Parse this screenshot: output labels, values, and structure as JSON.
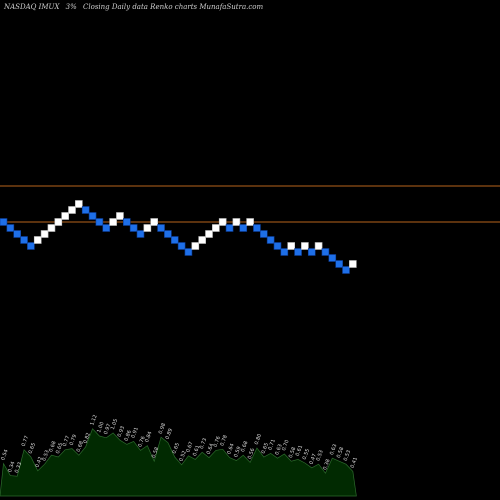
{
  "header": {
    "symbol": "NASDAQ IMUX",
    "change": "3%",
    "chart_label": "Closing Daily data Renko charts MunafaSutra.com"
  },
  "colors": {
    "background": "#000000",
    "up_brick_fill": "#ffffff",
    "up_brick_stroke": "#bbbbbb",
    "down_brick_fill": "#1e6fe8",
    "down_brick_stroke": "#0b3a91",
    "level_line": "#b8641c",
    "volume_fill": "#012a01",
    "volume_stroke": "#2c6a2c",
    "volume_label": "#dddddd"
  },
  "chart_data": {
    "type": "renko",
    "direction": [
      "down",
      "down",
      "down",
      "down",
      "down",
      "up",
      "up",
      "up",
      "up",
      "up",
      "up",
      "up",
      "down",
      "down",
      "down",
      "down",
      "up",
      "up",
      "down",
      "down",
      "down",
      "up",
      "up",
      "down",
      "down",
      "down",
      "down",
      "down",
      "up",
      "up",
      "up",
      "up",
      "up",
      "down",
      "up",
      "down",
      "up",
      "down",
      "down",
      "down",
      "down",
      "down",
      "up",
      "down",
      "up",
      "down",
      "up",
      "down",
      "down",
      "down",
      "down",
      "up"
    ],
    "levels": [
      {
        "label": "upper",
        "value": 6
      },
      {
        "label": "lower",
        "value": 0
      }
    ],
    "volume_labels": [
      "0.54",
      "0.34",
      "0.33",
      "0.77",
      "0.65",
      "0.42",
      "0.53",
      "0.68",
      "0.65",
      "0.77",
      "0.79",
      "0.68",
      "0.82",
      "1.12",
      "1.00",
      "0.97",
      "1.05",
      "0.93",
      "0.86",
      "0.91",
      "0.76",
      "0.84",
      "0.58",
      "0.98",
      "0.89",
      "0.65",
      "0.52",
      "0.67",
      "0.61",
      "0.73",
      "0.64",
      "0.76",
      "0.78",
      "0.64",
      "0.59",
      "0.68",
      "0.56",
      "0.80",
      "0.65",
      "0.71",
      "0.63",
      "0.70",
      "0.58",
      "0.61",
      "0.55",
      "0.47",
      "0.53",
      "0.38",
      "0.63",
      "0.58",
      "0.53",
      "0.41"
    ],
    "volume_values": [
      0.54,
      0.34,
      0.33,
      0.77,
      0.65,
      0.42,
      0.53,
      0.68,
      0.65,
      0.77,
      0.79,
      0.68,
      0.82,
      1.12,
      1.0,
      0.97,
      1.05,
      0.93,
      0.86,
      0.91,
      0.76,
      0.84,
      0.58,
      0.98,
      0.89,
      0.65,
      0.52,
      0.67,
      0.61,
      0.73,
      0.64,
      0.76,
      0.78,
      0.64,
      0.59,
      0.68,
      0.56,
      0.8,
      0.65,
      0.71,
      0.63,
      0.7,
      0.58,
      0.61,
      0.55,
      0.47,
      0.53,
      0.38,
      0.63,
      0.58,
      0.53,
      0.41
    ]
  }
}
